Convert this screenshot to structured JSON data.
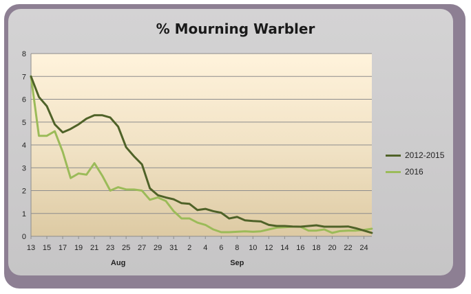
{
  "chart_data": {
    "type": "line",
    "title": "% Mourning Warbler",
    "xlabel": "",
    "ylabel": "",
    "ylim": [
      0,
      8
    ],
    "yticks": [
      "0",
      "1",
      "2",
      "3",
      "4",
      "5",
      "6",
      "7",
      "8"
    ],
    "xtick_labels": [
      "13",
      "15",
      "17",
      "19",
      "21",
      "23",
      "25",
      "27",
      "29",
      "31",
      "2",
      "4",
      "6",
      "8",
      "10",
      "12",
      "14",
      "16",
      "18",
      "20",
      "22",
      "24"
    ],
    "month_labels": [
      {
        "label": "Aug",
        "at_index": 11
      },
      {
        "label": "Sep",
        "at_index": 26
      }
    ],
    "grid": "horizontal",
    "legend_position": "right",
    "series": [
      {
        "name": "2012-2015",
        "color": "#4f6228",
        "values": [
          7.0,
          6.1,
          5.7,
          4.9,
          4.55,
          4.7,
          4.9,
          5.15,
          5.3,
          5.3,
          5.2,
          4.8,
          3.9,
          3.5,
          3.15,
          2.1,
          1.8,
          1.7,
          1.62,
          1.45,
          1.42,
          1.15,
          1.2,
          1.1,
          1.03,
          0.78,
          0.85,
          0.7,
          0.67,
          0.65,
          0.5,
          0.45,
          0.45,
          0.43,
          0.42,
          0.45,
          0.48,
          0.42,
          0.42,
          0.42,
          0.43,
          0.35,
          0.25,
          0.15
        ]
      },
      {
        "name": "2016",
        "color": "#9bbb59",
        "values": [
          7.0,
          4.4,
          4.4,
          4.6,
          3.7,
          2.55,
          2.75,
          2.7,
          3.2,
          2.65,
          2.0,
          2.15,
          2.05,
          2.05,
          2.0,
          1.6,
          1.7,
          1.55,
          1.1,
          0.78,
          0.78,
          0.6,
          0.5,
          0.3,
          0.18,
          0.18,
          0.2,
          0.22,
          0.2,
          0.22,
          0.3,
          0.38,
          0.4,
          0.42,
          0.42,
          0.25,
          0.25,
          0.3,
          0.15,
          0.23,
          0.25,
          0.25,
          0.28,
          0.33
        ]
      }
    ]
  }
}
